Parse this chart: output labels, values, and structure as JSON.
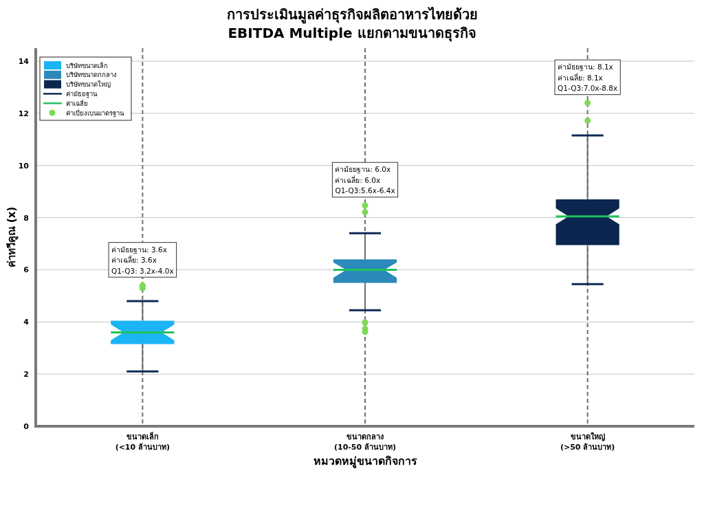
{
  "chart_data": {
    "type": "box",
    "title": "การประเมินมูลค่าธุรกิจผลิตอาหารไทยด้วย\nEBITDA Multiple แยกตามขนาดธุรกิจ",
    "xlabel": "หมวดหมู่ขนาดกิจการ",
    "ylabel": "ค่าทวีคูณ (x)",
    "categories": [
      "ขนาดเล็ก\n(<10 ล้านบาท)",
      "ขนาดกลาง\n(10-50 ล้านบาท)",
      "ขนาดใหญ่\n(>50 ล้านบาท)"
    ],
    "series": [
      {
        "name": "บริษัทขนาดเล็ก",
        "color": "#1bb4f5",
        "boxes": [
          {
            "low": 2.1,
            "q1": 3.15,
            "median": 3.6,
            "q3": 4.05,
            "high": 4.8,
            "mean": 3.6
          },
          null,
          null
        ]
      },
      {
        "name": "บริษัทขนาดกกลาง",
        "color": "#2b8aba",
        "boxes": [
          null,
          {
            "low": 4.45,
            "q1": 5.5,
            "median": 6.0,
            "q3": 6.4,
            "high": 7.4,
            "mean": 6.0
          },
          null
        ]
      },
      {
        "name": "บริษัทขนาดใหญ่",
        "color": "#0b2750",
        "boxes": [
          null,
          null,
          {
            "low": 5.45,
            "q1": 6.95,
            "median": 8.05,
            "q3": 8.7,
            "high": 11.15,
            "mean": 8.05
          }
        ]
      },
      {
        "name": "ค่ามัธยฐาน",
        "type": "line",
        "color": "#0d2a55",
        "x": [
          "ขนาดเล็ก\n(<10 ล้านบาท)",
          "ขนาดกลาง\n(10-50 ล้านบาท)",
          "ขนาดใหญ่\n(>50 ล้านบาท)"
        ],
        "values": [
          null,
          null,
          null
        ]
      },
      {
        "name": "ค่าเฉลี่ย",
        "type": "line",
        "color": "#1fc35c",
        "x": [
          "ขนาดเล็ก\n(<10 ล้านบาท)",
          "ขนาดกลาง\n(10-50 ล้านบาท)",
          "ขนาดใหญ่\n(>50 ล้านบาท)"
        ],
        "values": [
          null,
          null,
          null
        ]
      },
      {
        "name": "ค่าเบี่ยงเบนมาตรฐาน",
        "type": "scatter",
        "color": "#7ed957",
        "marker": "circle",
        "x": [
          "ขนาดเล็ก\n(<10 ล้านบาท)",
          "ขนาดเล็ก\n(<10 ล้านบาท)",
          "ขนาดกลาง\n(10-50 ล้านบาท)",
          "ขนาดกลาง\n(10-50 ล้านบาท)",
          "ขนาดกลาง\n(10-50 ล้านบาท)",
          "ขนาดกลาง\n(10-50 ล้านบาท)",
          "ขนาดกลาง\n(10-50 ล้านบาท)",
          "ขนาดใหญ่\n(>50 ล้านบาท)",
          "ขนาดใหญ่\n(>50 ล้านบาท)"
        ],
        "values": [
          5.3,
          5.4,
          8.47,
          8.21,
          3.98,
          3.74,
          3.62,
          12.4,
          11.72
        ]
      }
    ],
    "annotations": [
      "ค่ามัธยฐาน: 3.6x\nค่าเฉลี่ย: 3.6x\nQ1-Q3: 3.2x-4.0x",
      "ค่ามัธยฐาน: 6.0x\nค่าเฉลี่ย: 6.0x\nQ1-Q3:5.6x-6.4x",
      "ค่ามัธยฐาน: 8.1x\nค่าเฉลี่ย: 8.1x\nQ1-Q3:7.0x-8.8x"
    ],
    "ylim": [
      0,
      14.5
    ],
    "yticks": [
      0,
      2,
      4,
      6,
      8,
      10,
      12,
      14
    ],
    "grid": true,
    "legend": "top left"
  }
}
